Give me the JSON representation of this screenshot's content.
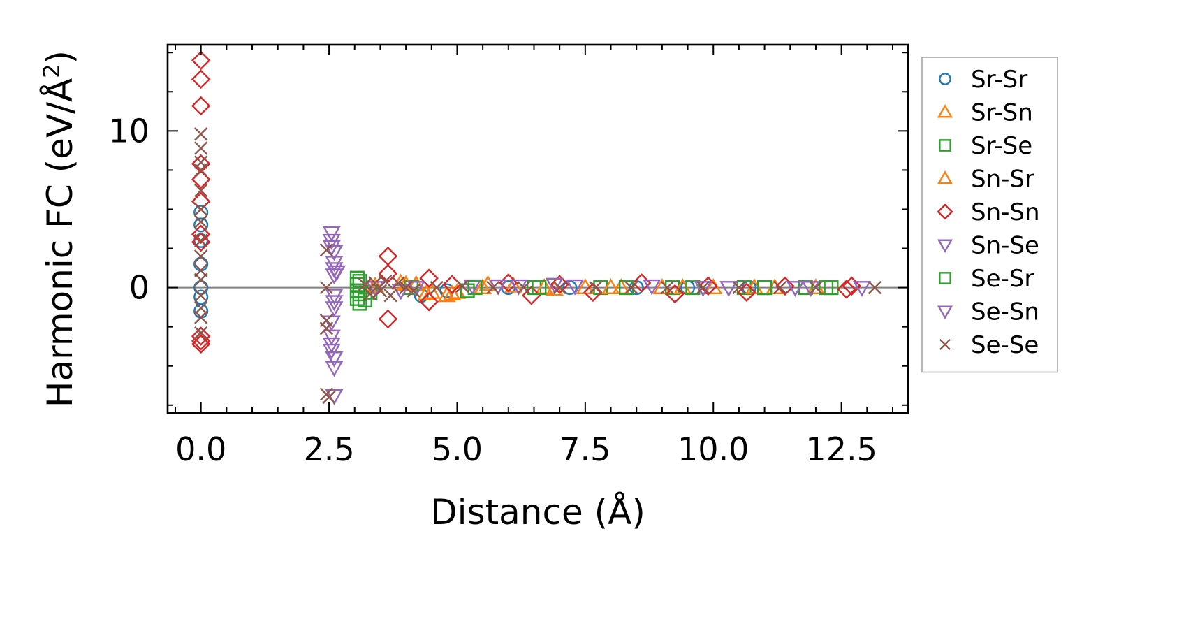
{
  "chart_data": {
    "type": "scatter",
    "title": "",
    "xlabel": "Distance (Å)",
    "ylabel_main": "Harmonic FC (eV/Å",
    "ylabel_sup": "2",
    "ylabel_close": ")",
    "xlim": [
      -0.65,
      13.8
    ],
    "ylim": [
      -8.0,
      15.5
    ],
    "x_ticks": [
      0.0,
      2.5,
      5.0,
      7.5,
      10.0,
      12.5
    ],
    "x_tick_labels": [
      "0.0",
      "2.5",
      "5.0",
      "7.5",
      "10.0",
      "12.5"
    ],
    "y_ticks": [
      0,
      10
    ],
    "y_tick_labels": [
      "0",
      "10"
    ],
    "zero_line": true,
    "grid": false,
    "legend_position": "outside-right",
    "series": [
      {
        "name": "Sr-Sr",
        "marker": "circle",
        "color": "#1f77b4",
        "points": [
          [
            0,
            0
          ],
          [
            0,
            1.5
          ],
          [
            0,
            3.0
          ],
          [
            0,
            4.0
          ],
          [
            0,
            4.8
          ],
          [
            0,
            -0.6
          ],
          [
            0,
            -1.5
          ],
          [
            4.3,
            -0.5
          ],
          [
            4.8,
            -0.2
          ],
          [
            6.0,
            0.0
          ],
          [
            7.2,
            0.0
          ],
          [
            8.5,
            0.0
          ],
          [
            9.5,
            0.0
          ],
          [
            10.7,
            0.0
          ]
        ]
      },
      {
        "name": "Sr-Sn",
        "marker": "triangle-up",
        "color": "#ff7f0e",
        "points": [
          [
            3.3,
            0.0
          ],
          [
            3.9,
            0.3
          ],
          [
            4.2,
            0.2
          ],
          [
            4.5,
            -0.3
          ],
          [
            4.8,
            -0.5
          ],
          [
            5.0,
            -0.3
          ],
          [
            5.6,
            0.2
          ],
          [
            6.1,
            0.1
          ],
          [
            6.9,
            -0.1
          ],
          [
            7.5,
            0.0
          ],
          [
            8.2,
            0.0
          ],
          [
            9.0,
            0.0
          ],
          [
            10.0,
            0.0
          ],
          [
            11.2,
            0.0
          ],
          [
            12.0,
            0.0
          ]
        ]
      },
      {
        "name": "Sr-Se",
        "marker": "square",
        "color": "#2ca02c",
        "points": [
          [
            3.05,
            0.6
          ],
          [
            3.05,
            0.2
          ],
          [
            3.05,
            -0.2
          ],
          [
            3.05,
            -0.7
          ],
          [
            3.1,
            -1.0
          ],
          [
            3.3,
            -0.3
          ],
          [
            4.1,
            0.0
          ],
          [
            5.2,
            -0.2
          ],
          [
            6.5,
            0.0
          ],
          [
            7.8,
            0.0
          ],
          [
            9.2,
            0.0
          ],
          [
            10.6,
            0.0
          ],
          [
            11.0,
            0.0
          ],
          [
            11.8,
            0.0
          ],
          [
            12.3,
            0.0
          ]
        ]
      },
      {
        "name": "Sn-Sr",
        "marker": "triangle-up",
        "color": "#ff7f0e",
        "points": [
          [
            3.4,
            0.1
          ],
          [
            4.0,
            0.2
          ],
          [
            4.4,
            -0.4
          ],
          [
            4.9,
            -0.4
          ],
          [
            5.5,
            0.0
          ],
          [
            6.7,
            0.0
          ],
          [
            8.0,
            0.0
          ],
          [
            9.4,
            0.0
          ],
          [
            10.8,
            0.0
          ]
        ]
      },
      {
        "name": "Sn-Sn",
        "marker": "diamond",
        "color": "#d62728",
        "points": [
          [
            0,
            14.5
          ],
          [
            0,
            13.3
          ],
          [
            0,
            11.6
          ],
          [
            0,
            7.9
          ],
          [
            0,
            6.9
          ],
          [
            0,
            5.5
          ],
          [
            0,
            3.4
          ],
          [
            0,
            2.9
          ],
          [
            0,
            -3.1
          ],
          [
            0,
            -3.4
          ],
          [
            0,
            -3.6
          ],
          [
            3.65,
            2.0
          ],
          [
            3.65,
            0.9
          ],
          [
            3.65,
            -2.0
          ],
          [
            4.45,
            0.6
          ],
          [
            4.45,
            -0.9
          ],
          [
            4.9,
            0.2
          ],
          [
            6.0,
            0.3
          ],
          [
            6.45,
            -0.5
          ],
          [
            7.0,
            0.2
          ],
          [
            7.65,
            -0.3
          ],
          [
            8.6,
            0.3
          ],
          [
            9.25,
            -0.4
          ],
          [
            9.9,
            0.1
          ],
          [
            10.65,
            -0.3
          ],
          [
            11.4,
            0.1
          ],
          [
            12.6,
            -0.1
          ],
          [
            12.7,
            0.1
          ]
        ]
      },
      {
        "name": "Sn-Se",
        "marker": "triangle-down",
        "color": "#9467bd",
        "points": [
          [
            2.55,
            3.5
          ],
          [
            2.55,
            3.0
          ],
          [
            2.6,
            2.3
          ],
          [
            2.6,
            1.6
          ],
          [
            2.6,
            0.8
          ],
          [
            2.6,
            -0.5
          ],
          [
            2.6,
            -1.3
          ],
          [
            2.55,
            -2.2
          ],
          [
            2.55,
            -3.1
          ],
          [
            2.55,
            -4.0
          ],
          [
            2.6,
            -5.1
          ],
          [
            2.6,
            -6.9
          ],
          [
            2.65,
            1.0
          ],
          [
            3.4,
            0.0
          ],
          [
            3.9,
            -0.2
          ],
          [
            5.3,
            0.1
          ],
          [
            5.8,
            0.1
          ],
          [
            6.9,
            0.2
          ],
          [
            8.8,
            0.1
          ],
          [
            10.3,
            0.0
          ],
          [
            11.9,
            0.0
          ],
          [
            12.9,
            0.0
          ]
        ]
      },
      {
        "name": "Se-Sr",
        "marker": "square",
        "color": "#2ca02c",
        "points": [
          [
            3.1,
            0.4
          ],
          [
            3.1,
            -0.4
          ],
          [
            3.2,
            -0.8
          ],
          [
            5.35,
            0.0
          ],
          [
            6.6,
            0.0
          ],
          [
            8.3,
            0.0
          ],
          [
            9.6,
            0.0
          ],
          [
            11.0,
            0.0
          ],
          [
            12.2,
            0.0
          ]
        ]
      },
      {
        "name": "Se-Sn",
        "marker": "triangle-down",
        "color": "#9467bd",
        "points": [
          [
            2.55,
            2.6
          ],
          [
            2.6,
            1.2
          ],
          [
            2.6,
            -0.9
          ],
          [
            2.55,
            -3.6
          ],
          [
            2.6,
            -4.5
          ],
          [
            4.2,
            0.0
          ],
          [
            6.2,
            0.1
          ],
          [
            7.3,
            0.1
          ],
          [
            9.8,
            0.0
          ],
          [
            11.6,
            0.0
          ]
        ]
      },
      {
        "name": "Se-Se",
        "marker": "x",
        "color": "#8c564b",
        "points": [
          [
            0,
            9.8
          ],
          [
            0,
            8.9
          ],
          [
            0,
            8.0
          ],
          [
            0,
            7.5
          ],
          [
            0,
            6.2
          ],
          [
            0,
            5.0
          ],
          [
            0,
            4.2
          ],
          [
            0,
            3.0
          ],
          [
            0,
            2.0
          ],
          [
            0,
            1.1
          ],
          [
            0,
            0.5
          ],
          [
            0,
            -0.5
          ],
          [
            0,
            -1.3
          ],
          [
            0,
            -1.9
          ],
          [
            0,
            -2.9
          ],
          [
            2.45,
            2.4
          ],
          [
            2.45,
            0.0
          ],
          [
            2.45,
            -2.1
          ],
          [
            2.45,
            -2.6
          ],
          [
            2.45,
            -6.8
          ],
          [
            2.5,
            -7.0
          ],
          [
            3.2,
            0.2
          ],
          [
            3.3,
            -0.4
          ],
          [
            3.4,
            0.3
          ],
          [
            3.5,
            -0.2
          ],
          [
            3.6,
            0.4
          ],
          [
            3.7,
            -0.5
          ],
          [
            3.85,
            0.3
          ],
          [
            4.0,
            0.0
          ],
          [
            4.15,
            -0.2
          ],
          [
            4.6,
            0.0
          ],
          [
            5.1,
            0.1
          ],
          [
            5.7,
            0.0
          ],
          [
            6.3,
            0.0
          ],
          [
            7.0,
            0.0
          ],
          [
            7.7,
            0.0
          ],
          [
            8.4,
            0.0
          ],
          [
            9.1,
            0.0
          ],
          [
            9.8,
            0.0
          ],
          [
            10.5,
            0.0
          ],
          [
            11.3,
            0.0
          ],
          [
            12.0,
            0.0
          ],
          [
            13.15,
            0.0
          ]
        ]
      }
    ]
  }
}
